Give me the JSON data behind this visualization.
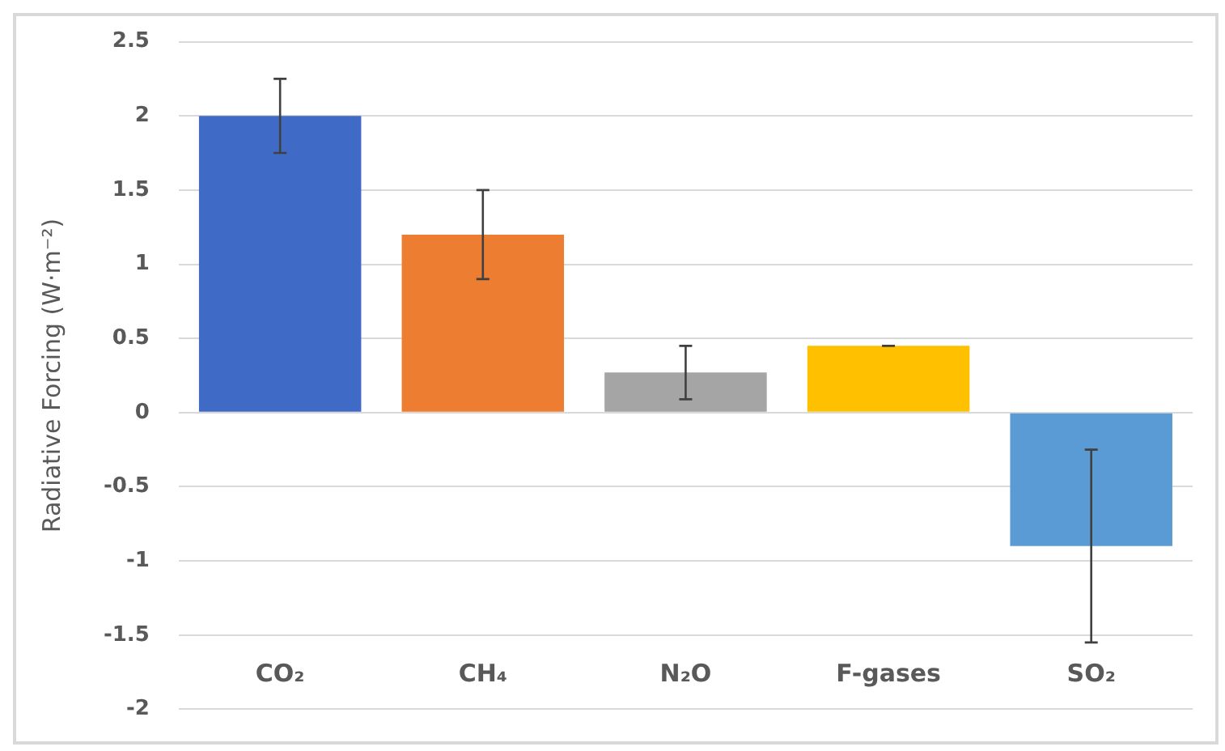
{
  "chart_data": {
    "type": "bar",
    "ylabel": "Radiative Forcing (W·m⁻²)",
    "categories": [
      "CO₂",
      "CH₄",
      "N₂O",
      "F-gases",
      "SO₂"
    ],
    "values": [
      2.0,
      1.2,
      0.27,
      0.45,
      -0.9
    ],
    "colors": [
      "#3f6bc6",
      "#ed7d31",
      "#a5a5a5",
      "#ffc000",
      "#5b9bd5"
    ],
    "errors": [
      [
        1.75,
        2.25
      ],
      [
        0.9,
        1.5
      ],
      [
        0.09,
        0.45
      ],
      [
        0.45,
        0.45
      ],
      [
        -1.55,
        -0.25
      ]
    ],
    "ylim": [
      -2,
      2.5
    ],
    "yticks": [
      -2,
      -1.5,
      -1,
      -0.5,
      0,
      0.5,
      1,
      1.5,
      2,
      2.5
    ],
    "grid": "y",
    "legend": false
  }
}
